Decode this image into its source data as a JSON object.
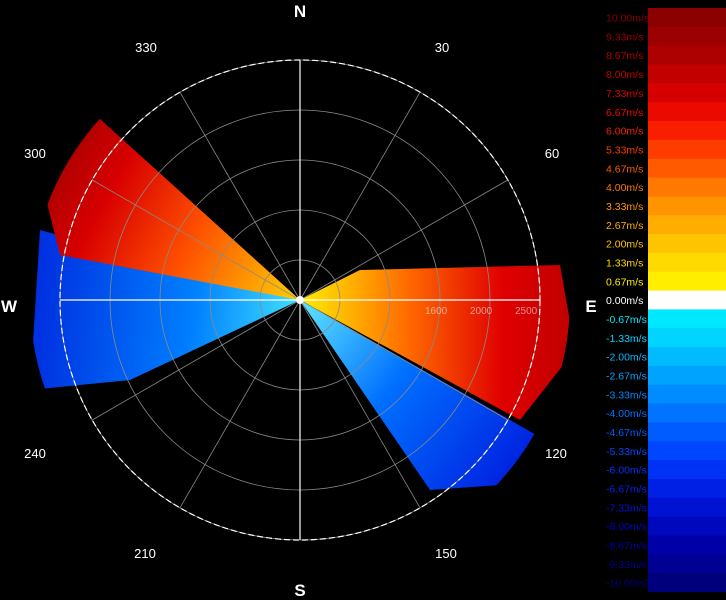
{
  "chart_data": {
    "type": "polar_radar_velocity",
    "cardinal_labels": {
      "north": "N",
      "south": "S",
      "east": "E",
      "west": "W"
    },
    "azimuth_labels": [
      "30",
      "60",
      "120",
      "150",
      "210",
      "240",
      "300",
      "330"
    ],
    "range_labels": [
      "1600",
      "2000",
      "2500"
    ],
    "colorbar": {
      "unit": "m/s",
      "ticks": [
        {
          "label": "10.00m/s",
          "color": "#8b0000"
        },
        {
          "label": "9.33m/s",
          "color": "#9c0000"
        },
        {
          "label": "8.67m/s",
          "color": "#ad0000"
        },
        {
          "label": "8.00m/s",
          "color": "#c20000"
        },
        {
          "label": "7.33m/s",
          "color": "#d60000"
        },
        {
          "label": "6.67m/s",
          "color": "#ea0a00"
        },
        {
          "label": "6.00m/s",
          "color": "#fa1e00"
        },
        {
          "label": "5.33m/s",
          "color": "#ff3c00"
        },
        {
          "label": "4.67m/s",
          "color": "#ff5a00"
        },
        {
          "label": "4.00m/s",
          "color": "#ff7800"
        },
        {
          "label": "3.33m/s",
          "color": "#ff9400"
        },
        {
          "label": "2.67m/s",
          "color": "#ffad00"
        },
        {
          "label": "2.00m/s",
          "color": "#ffc400"
        },
        {
          "label": "1.33m/s",
          "color": "#ffda00"
        },
        {
          "label": "0.67m/s",
          "color": "#ffee00"
        },
        {
          "label": "0.00m/s",
          "color": "#ffffff"
        },
        {
          "label": "-0.67m/s",
          "color": "#00e8ff"
        },
        {
          "label": "-1.33m/s",
          "color": "#00d4ff"
        },
        {
          "label": "-2.00m/s",
          "color": "#00bcff"
        },
        {
          "label": "-2.67m/s",
          "color": "#00a4ff"
        },
        {
          "label": "-3.33m/s",
          "color": "#008cff"
        },
        {
          "label": "-4.00m/s",
          "color": "#0074ff"
        },
        {
          "label": "-4.67m/s",
          "color": "#005cff"
        },
        {
          "label": "-5.33m/s",
          "color": "#0046ff"
        },
        {
          "label": "-6.00m/s",
          "color": "#0032f5"
        },
        {
          "label": "-6.67m/s",
          "color": "#0020e6"
        },
        {
          "label": "-7.33m/s",
          "color": "#0012d2"
        },
        {
          "label": "-8.00m/s",
          "color": "#0008be"
        },
        {
          "label": "-8.67m/s",
          "color": "#0000a8"
        },
        {
          "label": "-9.33m/s",
          "color": "#000092"
        },
        {
          "label": "-10.00m/s",
          "color": "#00007c"
        }
      ]
    }
  }
}
